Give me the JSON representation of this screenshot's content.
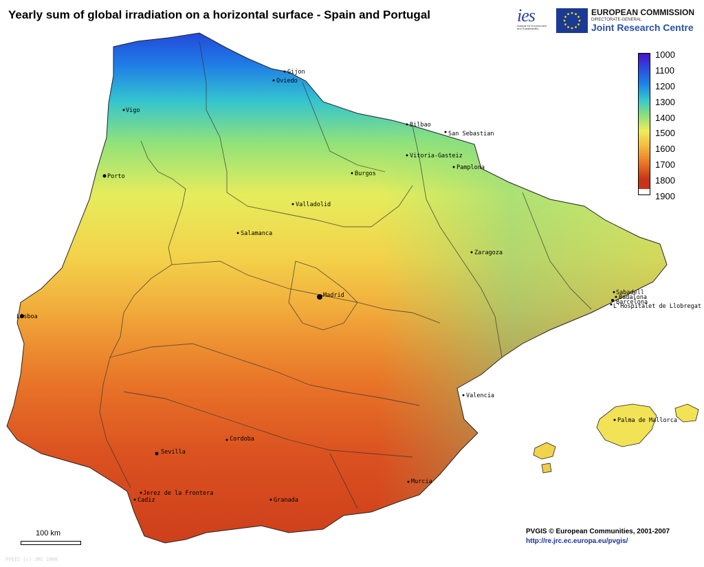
{
  "title": "Yearly sum of global irradiation on a horizontal surface - Spain and Portugal",
  "logos": {
    "ies": "ies",
    "ies_subtitle": "Institute for Environment and Sustainability",
    "ec_line1": "EUROPEAN COMMISSION",
    "ec_line2": "DIRECTORATE-GENERAL",
    "ec_line3": "Joint Research Centre"
  },
  "legend": {
    "labels": [
      "1000",
      "1100",
      "1200",
      "1300",
      "1400",
      "1500",
      "1600",
      "1700",
      "1800",
      "1900"
    ],
    "colors": [
      "#4a10c8",
      "#2a4fe0",
      "#1c86e6",
      "#38c8cc",
      "#8ce07a",
      "#f0ec5a",
      "#f5b83e",
      "#ec7a26",
      "#c8341a",
      "#ffffff"
    ]
  },
  "cities": [
    {
      "name": "Gijon"
    },
    {
      "name": "Oviedo"
    },
    {
      "name": "Vigo"
    },
    {
      "name": "Bilbao"
    },
    {
      "name": "San Sebastian"
    },
    {
      "name": "Vitoria-Gasteiz"
    },
    {
      "name": "Pamplona"
    },
    {
      "name": "Burgos"
    },
    {
      "name": "Porto"
    },
    {
      "name": "Valladolid"
    },
    {
      "name": "Salamanca"
    },
    {
      "name": "Zaragoza"
    },
    {
      "name": "Sabadell"
    },
    {
      "name": "Badalona"
    },
    {
      "name": "Barcelona"
    },
    {
      "name": "L'Hospitalet de Llobregat"
    },
    {
      "name": "Madrid"
    },
    {
      "name": "Lisboa"
    },
    {
      "name": "Valencia"
    },
    {
      "name": "Palma de Mallorca"
    },
    {
      "name": "Cordoba"
    },
    {
      "name": "Sevilla"
    },
    {
      "name": "Murcia"
    },
    {
      "name": "Jerez de la Frontera"
    },
    {
      "name": "Cadiz"
    },
    {
      "name": "Granada"
    }
  ],
  "scale": "100 km",
  "credit": "PVGIS © European Communities, 2001-2007",
  "url": "http://re.jrc.ec.europa.eu/pvgis/",
  "watermark": "PVGIS (c) JRC 2008"
}
